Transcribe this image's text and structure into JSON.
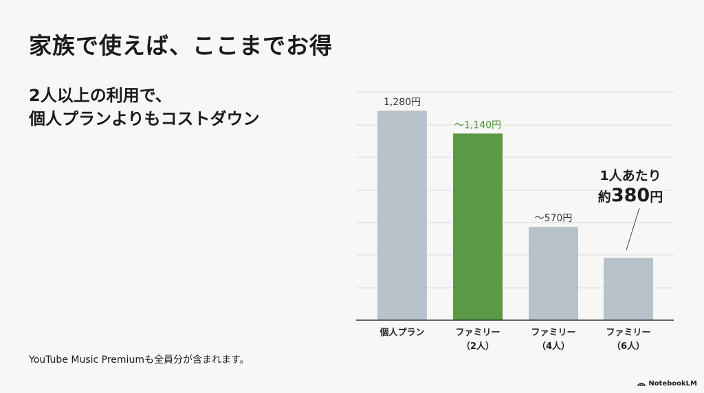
{
  "slide": {
    "title": "家族で使えば、ここまでお得",
    "subtitle_line1": "2人以上の利用で、",
    "subtitle_line2": "個人プランよりもコストダウン",
    "footnote": "YouTube Music Premiumも全員分が含まれます。",
    "brand": "NotebookLM"
  },
  "colors": {
    "bar_default": "#b7c2cb",
    "bar_highlight": "#5b9946",
    "highlight_text": "#4f8f3c",
    "grid": "#d9d9d9",
    "axis": "#333333"
  },
  "chart_data": {
    "type": "bar",
    "categories": [
      [
        "個人プラン"
      ],
      [
        "ファミリー",
        "（2人）"
      ],
      [
        "ファミリー",
        "（4人）"
      ],
      [
        "ファミリー",
        "（6人）"
      ]
    ],
    "values": [
      1280,
      1140,
      570,
      380
    ],
    "data_labels": [
      "1,280円",
      "〜1,140円",
      "〜570円",
      ""
    ],
    "highlight_index": 1,
    "ylim": [
      0,
      1280
    ],
    "grid": true,
    "annotation": {
      "target_index": 3,
      "line1": "1人あたり",
      "prefix": "約",
      "value": "380",
      "suffix": "円"
    },
    "title": "",
    "xlabel": "",
    "ylabel": ""
  }
}
